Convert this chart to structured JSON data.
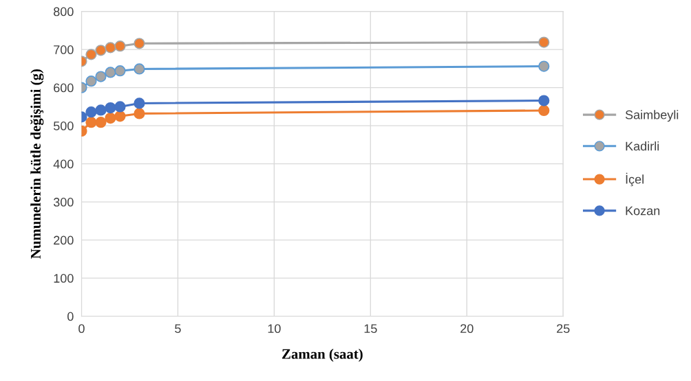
{
  "chart_data": {
    "type": "line",
    "xlabel": "Zaman (saat)",
    "ylabel": "Numunelerin kütle değişimi (g)",
    "x": [
      0,
      0.5,
      1,
      1.5,
      2,
      3,
      24
    ],
    "series": [
      {
        "name": "Saimbeyli",
        "color": "#a5a5a5",
        "colors": [
          "#ed7d31",
          "#ed7d31",
          "#ed7d31",
          "#ed7d31",
          "#ed7d31",
          "#ed7d31",
          "#ed7d31"
        ],
        "values": [
          669,
          687,
          698,
          705,
          709,
          716,
          719
        ]
      },
      {
        "name": "Kadirli",
        "color": "#5b9bd5",
        "colors": [
          "#a5a5a5",
          "#a5a5a5",
          "#a5a5a5",
          "#a5a5a5",
          "#a5a5a5",
          "#a5a5a5",
          "#a5a5a5"
        ],
        "values": [
          600,
          617,
          629,
          640,
          644,
          649,
          656
        ]
      },
      {
        "name": "İçel",
        "color": "#ed7d31",
        "colors": [
          "#ed7d31",
          "#ed7d31",
          "#ed7d31",
          "#ed7d31",
          "#ed7d31",
          "#ed7d31",
          "#ed7d31"
        ],
        "values": [
          486,
          509,
          509,
          520,
          525,
          532,
          540
        ]
      },
      {
        "name": "Kozan",
        "color": "#4472c4",
        "colors": [
          "#4472c4",
          "#4472c4",
          "#4472c4",
          "#4472c4",
          "#4472c4",
          "#4472c4",
          "#4472c4"
        ],
        "values": [
          523,
          536,
          541,
          547,
          550,
          559,
          566
        ]
      }
    ],
    "xlim": [
      0,
      25
    ],
    "xticks": [
      0,
      5,
      10,
      15,
      20,
      25
    ],
    "ylim": [
      0,
      800
    ],
    "yticks": [
      0,
      100,
      200,
      300,
      400,
      500,
      600,
      700,
      800
    ],
    "grid": true,
    "legend": "right",
    "marker": "circle",
    "line_style": "solid"
  }
}
